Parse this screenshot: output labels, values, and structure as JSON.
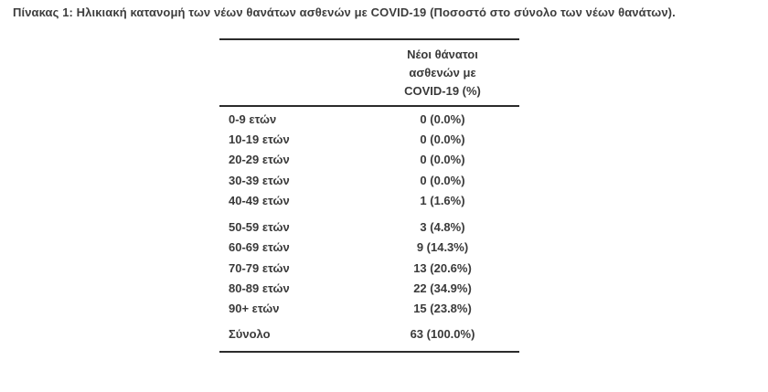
{
  "title": "Πίνακας 1: Ηλικιακή κατανομή των νέων θανάτων ασθενών με COVID-19 (Ποσοστό στο σύνολο των νέων θανάτων).",
  "colors": {
    "text": "#3d3d3d",
    "rule": "#2b2b2b",
    "background": "#ffffff"
  },
  "table": {
    "value_column_header_lines": [
      "Νέοι θάνατοι",
      "ασθενών με",
      "COVID-19 (%)"
    ],
    "groups": [
      {
        "name": "ages-0-49",
        "total": false,
        "rows": [
          {
            "label": "0-9 ετών",
            "value": "0 (0.0%)"
          },
          {
            "label": "10-19 ετών",
            "value": "0 (0.0%)"
          },
          {
            "label": "20-29 ετών",
            "value": "0 (0.0%)"
          },
          {
            "label": "30-39 ετών",
            "value": "0 (0.0%)"
          },
          {
            "label": "40-49 ετών",
            "value": "1 (1.6%)"
          }
        ]
      },
      {
        "name": "ages-50-90plus",
        "total": false,
        "rows": [
          {
            "label": "50-59 ετών",
            "value": "3 (4.8%)"
          },
          {
            "label": "60-69 ετών",
            "value": "9 (14.3%)"
          },
          {
            "label": "70-79 ετών",
            "value": "13 (20.6%)"
          },
          {
            "label": "80-89 ετών",
            "value": "22 (34.9%)"
          },
          {
            "label": "90+ ετών",
            "value": "15 (23.8%)"
          }
        ]
      },
      {
        "name": "total",
        "total": true,
        "rows": [
          {
            "label": "Σύνολο",
            "value": "63 (100.0%)"
          }
        ]
      }
    ]
  },
  "chart_data": {
    "type": "table",
    "title": "Πίνακας 1: Ηλικιακή κατανομή των νέων θανάτων ασθενών με COVID-19 (Ποσοστό στο σύνολο των νέων θανάτων).",
    "columns": [
      "",
      "Νέοι θάνατοι ασθενών με COVID-19 (%)"
    ],
    "rows": [
      [
        "0-9 ετών",
        "0 (0.0%)"
      ],
      [
        "10-19 ετών",
        "0 (0.0%)"
      ],
      [
        "20-29 ετών",
        "0 (0.0%)"
      ],
      [
        "30-39 ετών",
        "0 (0.0%)"
      ],
      [
        "40-49 ετών",
        "1 (1.6%)"
      ],
      [
        "50-59 ετών",
        "3 (4.8%)"
      ],
      [
        "60-69 ετών",
        "9 (14.3%)"
      ],
      [
        "70-79 ετών",
        "13 (20.6%)"
      ],
      [
        "80-89 ετών",
        "22 (34.9%)"
      ],
      [
        "90+ ετών",
        "15 (23.8%)"
      ],
      [
        "Σύνολο",
        "63 (100.0%)"
      ]
    ]
  }
}
